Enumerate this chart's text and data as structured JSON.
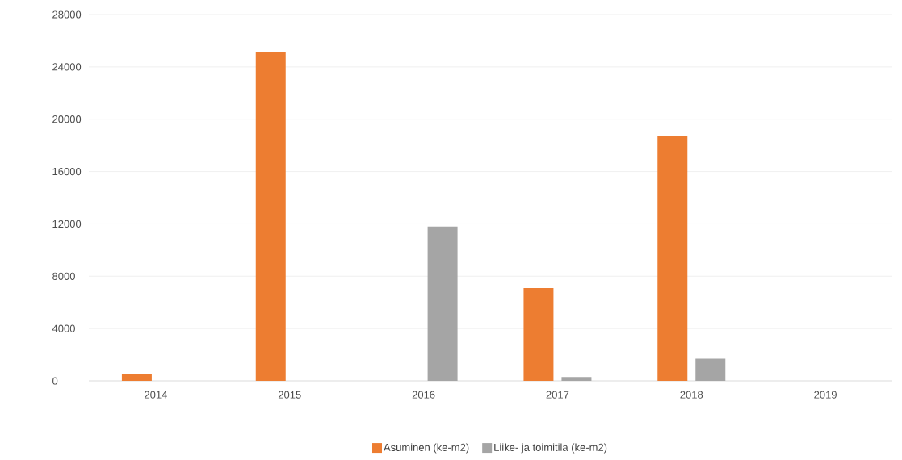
{
  "chart_data": {
    "type": "bar",
    "categories": [
      "2014",
      "2015",
      "2016",
      "2017",
      "2018",
      "2019"
    ],
    "series": [
      {
        "name": "Asuminen (ke-m2)",
        "color": "#ed7d31",
        "values": [
          550,
          25100,
          null,
          7100,
          18700,
          null
        ]
      },
      {
        "name": "Liike- ja toimitila (ke-m2)",
        "color": "#a5a5a5",
        "values": [
          null,
          null,
          11800,
          300,
          1700,
          null
        ]
      }
    ],
    "ylim": [
      0,
      28000
    ],
    "yticks": [
      0,
      4000,
      8000,
      12000,
      16000,
      20000,
      24000,
      28000
    ],
    "grid": "y",
    "legend": "bottom"
  }
}
